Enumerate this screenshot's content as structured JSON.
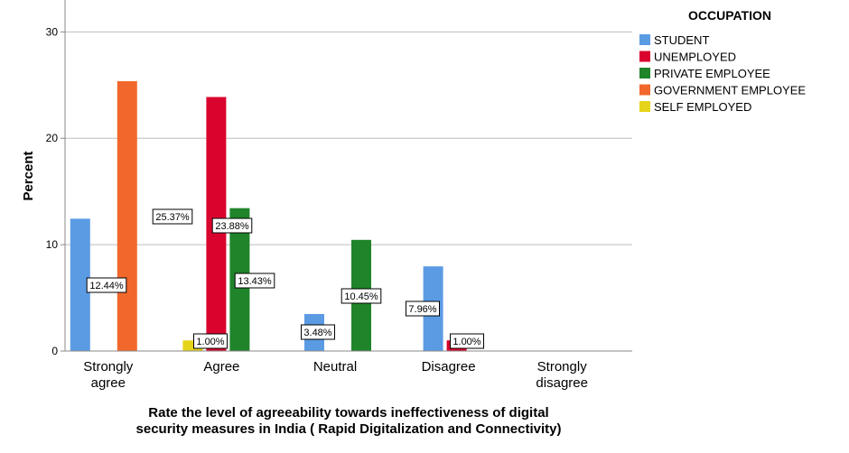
{
  "chart_data": {
    "type": "bar",
    "title": "",
    "ylabel": "Percent",
    "xlabel_lines": [
      "Rate the level of agreeability towards ineffectiveness of digital",
      "security measures in India ( Rapid Digitalization and Connectivity)"
    ],
    "categories": [
      [
        "Strongly",
        "agree"
      ],
      [
        "Agree"
      ],
      [
        "Neutral"
      ],
      [
        "Disagree"
      ],
      [
        "Strongly",
        "disagree"
      ]
    ],
    "ylim": [
      0,
      33
    ],
    "yticks": [
      0,
      10,
      20,
      30
    ],
    "grid": true,
    "legend_title": "OCCUPATION",
    "legend_position": "top-right",
    "series": [
      {
        "name": "STUDENT",
        "color": "#5b9be4",
        "values": [
          12.44,
          null,
          3.48,
          7.96,
          null
        ],
        "labels": [
          "12.44%",
          null,
          "3.48%",
          "7.96%",
          null
        ]
      },
      {
        "name": "UNEMPLOYED",
        "color": "#d9042e",
        "values": [
          null,
          23.88,
          null,
          1.0,
          null
        ],
        "labels": [
          null,
          "23.88%",
          null,
          "1.00%",
          null
        ]
      },
      {
        "name": "PRIVATE EMPLOYEE",
        "color": "#1f842a",
        "values": [
          null,
          13.43,
          10.45,
          null,
          null
        ],
        "labels": [
          null,
          "13.43%",
          "10.45%",
          null,
          null
        ]
      },
      {
        "name": "GOVERNMENT EMPLOYEE",
        "color": "#f2682c",
        "values": [
          25.37,
          null,
          null,
          null,
          null
        ],
        "labels": [
          "25.37%",
          null,
          null,
          null,
          null
        ]
      },
      {
        "name": "SELF EMPLOYED",
        "color": "#e5d41a",
        "values": [
          null,
          1.0,
          null,
          null,
          null
        ],
        "labels": [
          null,
          "1.00%",
          null,
          null,
          null
        ]
      }
    ]
  }
}
